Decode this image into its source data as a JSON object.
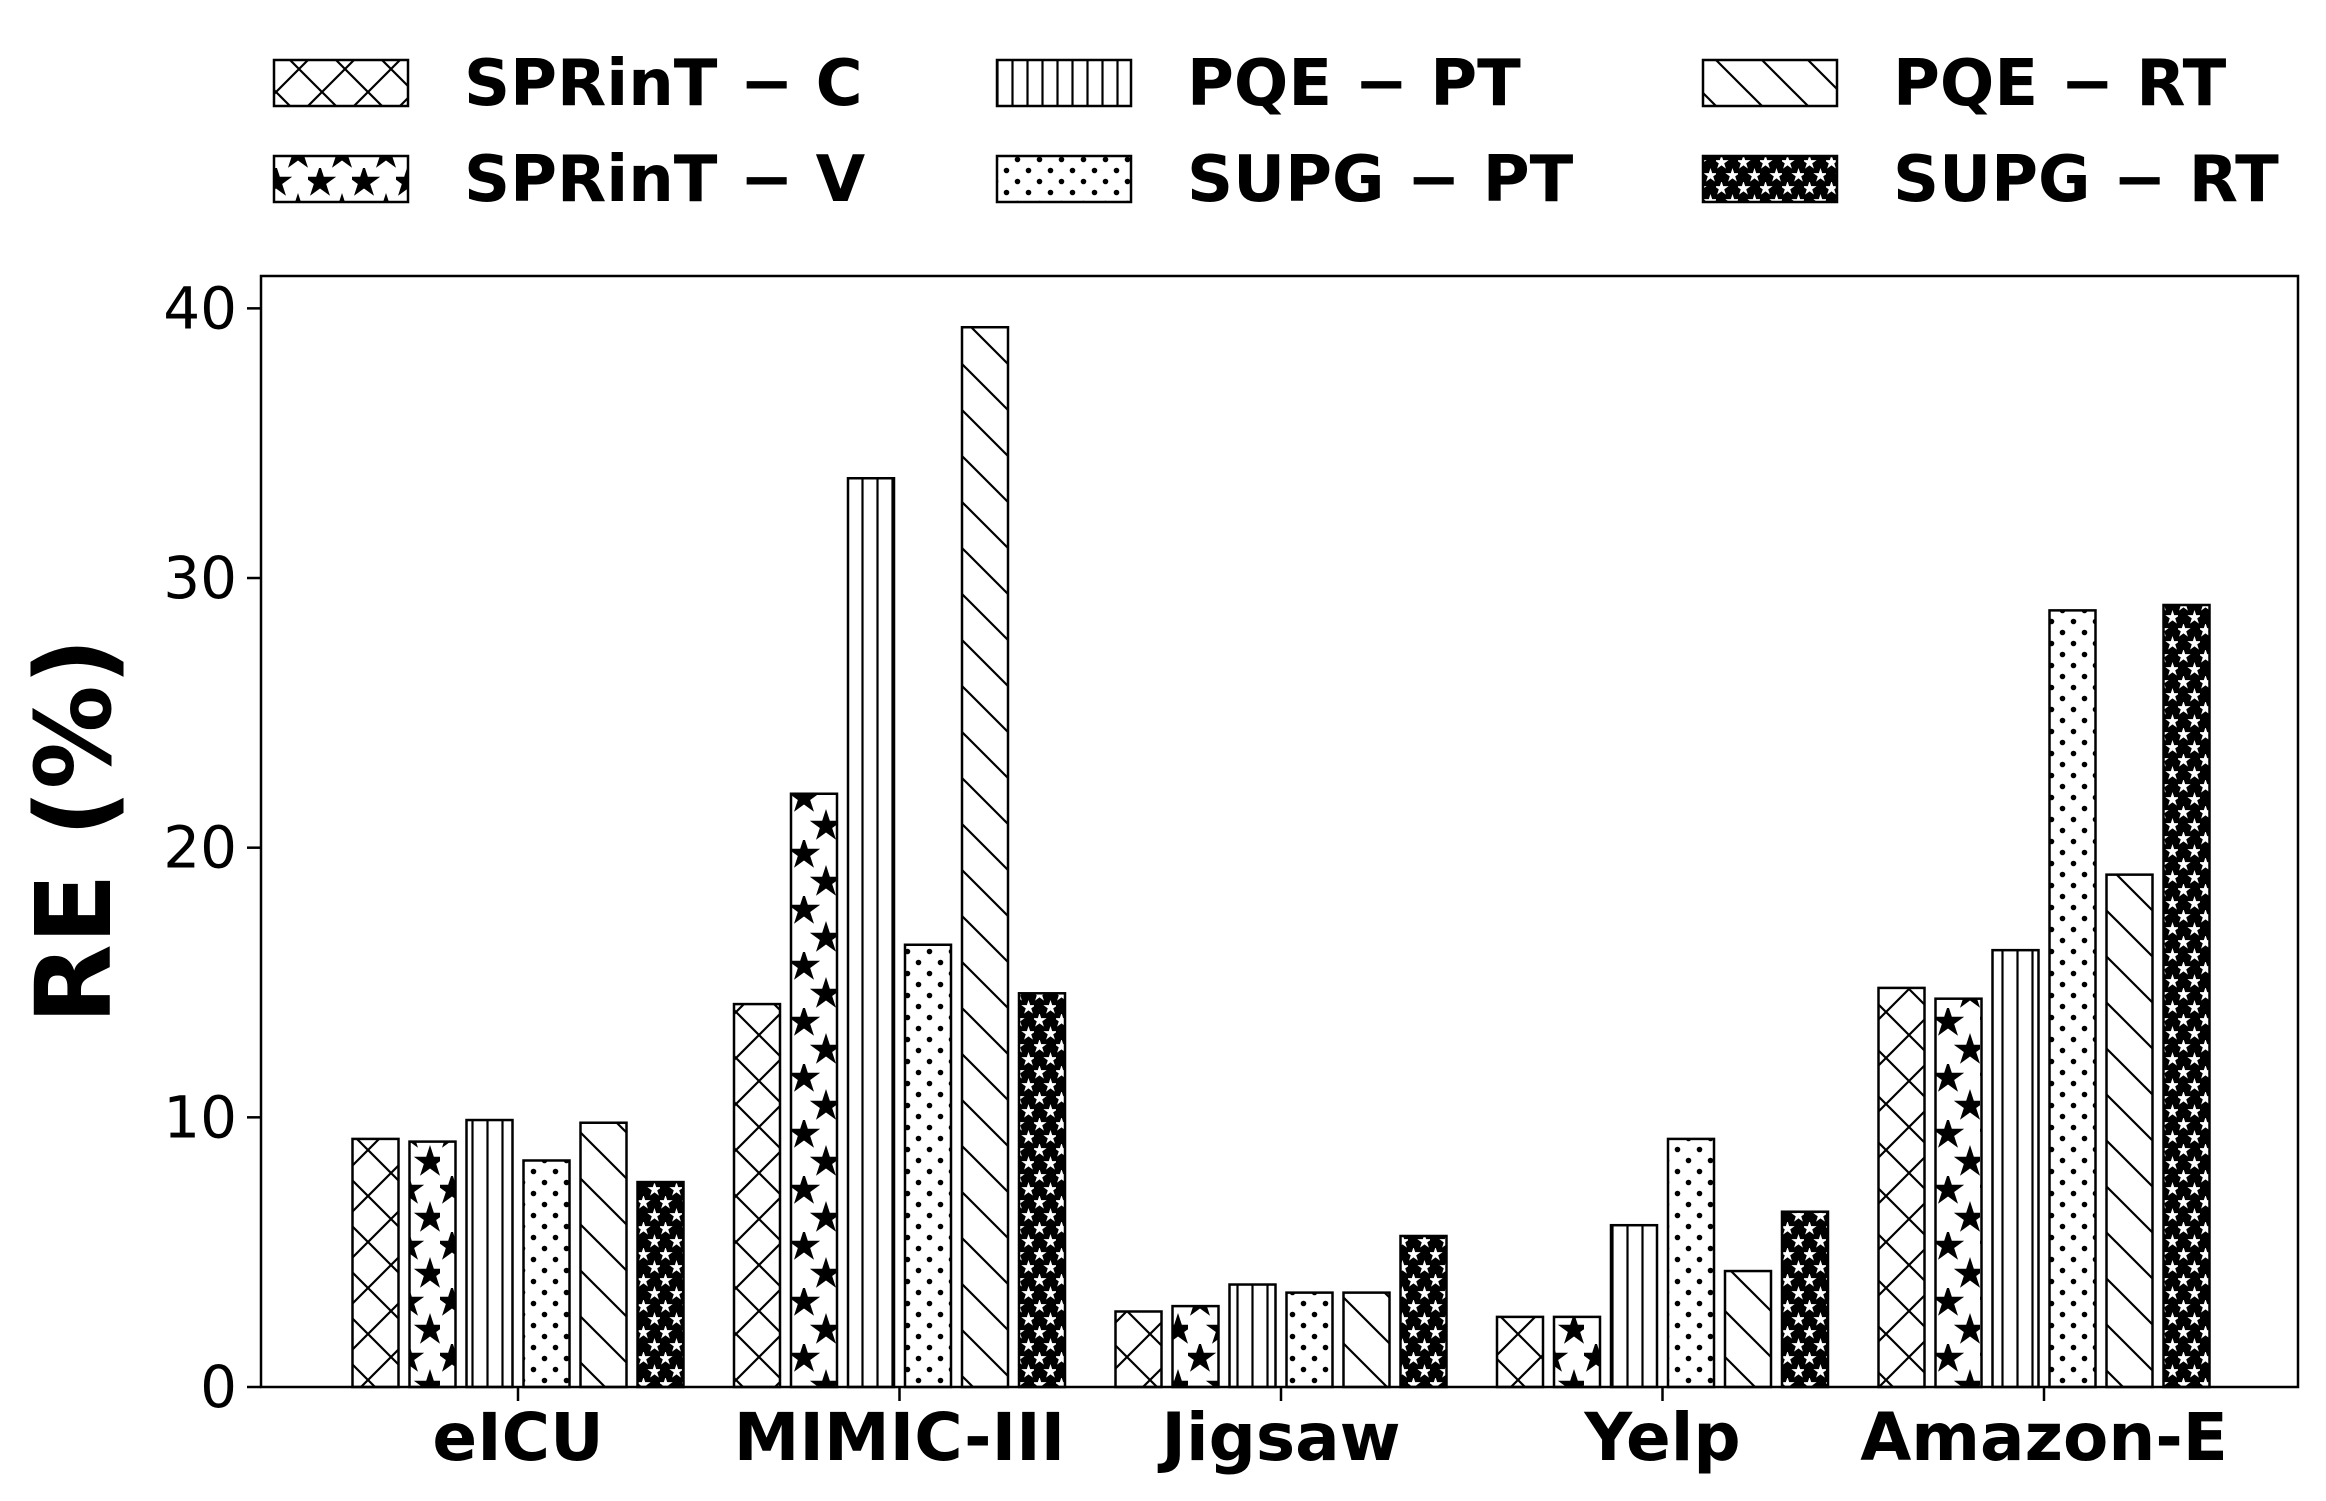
{
  "chart_data": {
    "type": "bar",
    "title": "",
    "xlabel": "",
    "ylabel": "RE (%)",
    "ylim": [
      0,
      41.2
    ],
    "yticks": [
      0,
      10,
      20,
      30,
      40
    ],
    "grid": false,
    "legend_position": "top",
    "categories": [
      "eICU",
      "MIMIC-III",
      "Jigsaw",
      "Yelp",
      "Amazon-E"
    ],
    "series": [
      {
        "name": "SPRinT − C",
        "hatch": "cross",
        "values": [
          9.2,
          14.2,
          2.8,
          2.6,
          14.8
        ]
      },
      {
        "name": "SPRinT − V",
        "hatch": "stars-large",
        "values": [
          9.1,
          22.0,
          3.0,
          2.6,
          14.4
        ]
      },
      {
        "name": "PQE − PT",
        "hatch": "vertical",
        "values": [
          9.9,
          33.7,
          3.8,
          6.0,
          16.2
        ]
      },
      {
        "name": "SUPG − PT",
        "hatch": "dots",
        "values": [
          8.4,
          16.4,
          3.5,
          9.2,
          28.8
        ]
      },
      {
        "name": "PQE − RT",
        "hatch": "diagonal",
        "values": [
          9.8,
          39.3,
          3.5,
          4.3,
          19.0
        ]
      },
      {
        "name": "SUPG − RT",
        "hatch": "stars-small",
        "values": [
          7.6,
          14.6,
          5.6,
          6.5,
          29.0
        ]
      }
    ]
  }
}
